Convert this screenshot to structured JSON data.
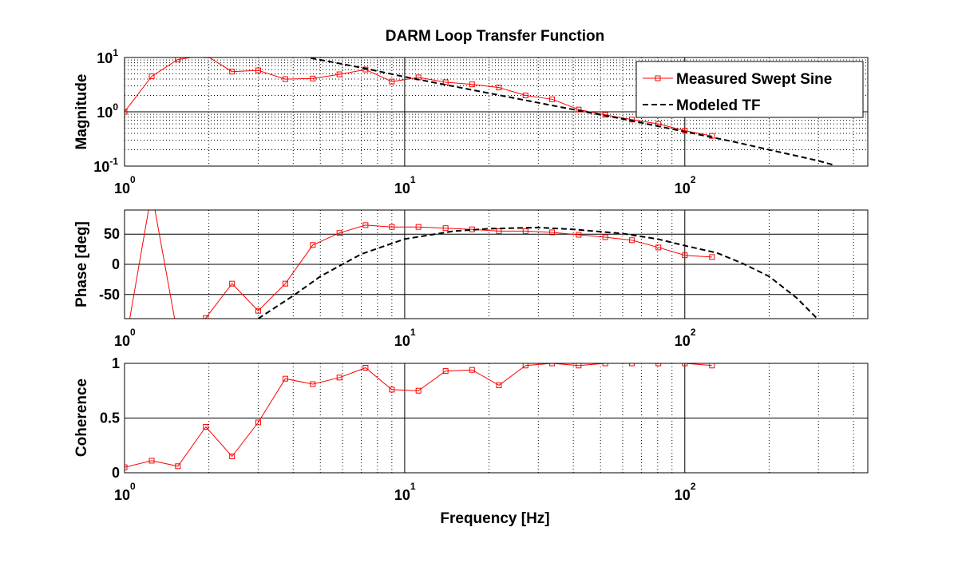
{
  "figure": {
    "title": "DARM Loop Transfer Function",
    "xlabel": "Frequency [Hz]"
  },
  "chart_data": [
    {
      "type": "line",
      "title": "DARM Loop Transfer Function",
      "xlabel": "",
      "ylabel": "Magnitude",
      "xscale": "log",
      "yscale": "log",
      "xlim": [
        1,
        450
      ],
      "ylim": [
        0.1,
        10
      ],
      "xticks": [
        {
          "value": 1,
          "label": "10",
          "exp": "0"
        },
        {
          "value": 10,
          "label": "10",
          "exp": "1"
        },
        {
          "value": 100,
          "label": "10",
          "exp": "2"
        }
      ],
      "yticks": [
        {
          "value": 0.1,
          "label": "10",
          "exp": "-1"
        },
        {
          "value": 1,
          "label": "10",
          "exp": "0"
        },
        {
          "value": 10,
          "label": "10",
          "exp": "1"
        }
      ],
      "grid": true,
      "legend": "top-right",
      "series": [
        {
          "name": "Measured Swept Sine",
          "color": "#ff0000",
          "marker": "square",
          "x": [
            1,
            1.25,
            1.55,
            1.95,
            2.42,
            3.0,
            3.75,
            4.7,
            5.85,
            7.25,
            9.0,
            11.2,
            14.0,
            17.4,
            21.7,
            27.0,
            33.6,
            41.8,
            52.0,
            64.7,
            80.5,
            100,
            125
          ],
          "y": [
            1.0,
            4.5,
            9.2,
            11.0,
            5.5,
            5.8,
            4.0,
            4.1,
            4.9,
            6.0,
            3.6,
            4.3,
            3.5,
            3.2,
            2.8,
            2.0,
            1.7,
            1.1,
            0.88,
            0.72,
            0.6,
            0.45,
            0.36
          ]
        },
        {
          "name": "Modeled TF",
          "color": "#000000",
          "dashed": true,
          "x": [
            4.3,
            7,
            10,
            20,
            40,
            60,
            100,
            150,
            200,
            250,
            300,
            340
          ],
          "y": [
            10.5,
            6.5,
            4.4,
            2.2,
            1.1,
            0.74,
            0.43,
            0.28,
            0.2,
            0.155,
            0.125,
            0.105
          ]
        }
      ]
    },
    {
      "type": "line",
      "title": "",
      "xlabel": "",
      "ylabel": "Phase [deg]",
      "xscale": "log",
      "yscale": "linear",
      "xlim": [
        1,
        450
      ],
      "ylim": [
        -90,
        90
      ],
      "xticks": [
        {
          "value": 1,
          "label": "10",
          "exp": "0"
        },
        {
          "value": 10,
          "label": "10",
          "exp": "1"
        },
        {
          "value": 100,
          "label": "10",
          "exp": "2"
        }
      ],
      "yticks": [
        {
          "value": -50,
          "label": "-50"
        },
        {
          "value": 0,
          "label": "0"
        },
        {
          "value": 50,
          "label": "50"
        }
      ],
      "grid": true,
      "series": [
        {
          "name": "Measured Swept Sine",
          "color": "#ff0000",
          "marker": "square",
          "x": [
            1,
            1.25,
            1.55,
            1.95,
            2.42,
            3.0,
            3.75,
            4.7,
            5.85,
            7.25,
            9.0,
            11.2,
            14.0,
            17.4,
            21.7,
            27.0,
            33.6,
            41.8,
            52.0,
            64.7,
            80.5,
            100,
            125
          ],
          "y": [
            -140,
            120,
            -120,
            -89,
            -32,
            -77,
            -32,
            32,
            52,
            65,
            62,
            62,
            60,
            58,
            55,
            55,
            53,
            49,
            45,
            40,
            28,
            15,
            12
          ],
          "markers_visible": [
            false,
            false,
            false,
            true,
            true,
            true,
            true,
            true,
            true,
            true,
            true,
            true,
            true,
            true,
            true,
            true,
            true,
            true,
            true,
            true,
            true,
            true,
            true
          ]
        },
        {
          "name": "Modeled TF",
          "color": "#000000",
          "dashed": true,
          "x": [
            3.0,
            4.0,
            5.0,
            7.0,
            10,
            15,
            20,
            30,
            40,
            60,
            80,
            100,
            130,
            160,
            200,
            250,
            300
          ],
          "y": [
            -90,
            -52,
            -20,
            17,
            42,
            55,
            59,
            61,
            58,
            51,
            42,
            31,
            19,
            2,
            -20,
            -55,
            -92
          ]
        }
      ]
    },
    {
      "type": "line",
      "title": "",
      "xlabel": "Frequency [Hz]",
      "ylabel": "Coherence",
      "xscale": "log",
      "yscale": "linear",
      "xlim": [
        1,
        450
      ],
      "ylim": [
        0,
        1
      ],
      "xticks": [
        {
          "value": 1,
          "label": "10",
          "exp": "0"
        },
        {
          "value": 10,
          "label": "10",
          "exp": "1"
        },
        {
          "value": 100,
          "label": "10",
          "exp": "2"
        }
      ],
      "yticks": [
        {
          "value": 0,
          "label": "0"
        },
        {
          "value": 0.5,
          "label": "0.5"
        },
        {
          "value": 1,
          "label": "1"
        }
      ],
      "grid": true,
      "series": [
        {
          "name": "Measured Swept Sine",
          "color": "#ff0000",
          "marker": "square",
          "x": [
            1,
            1.25,
            1.55,
            1.95,
            2.42,
            3.0,
            3.75,
            4.7,
            5.85,
            7.25,
            9.0,
            11.2,
            14.0,
            17.4,
            21.7,
            27.0,
            33.6,
            41.8,
            52.0,
            64.7,
            80.5,
            100,
            125
          ],
          "y": [
            0.05,
            0.11,
            0.06,
            0.42,
            0.15,
            0.46,
            0.86,
            0.81,
            0.87,
            0.96,
            0.76,
            0.75,
            0.93,
            0.94,
            0.8,
            0.98,
            1.0,
            0.98,
            1.0,
            1.0,
            1.0,
            1.0,
            0.98
          ]
        }
      ]
    }
  ]
}
